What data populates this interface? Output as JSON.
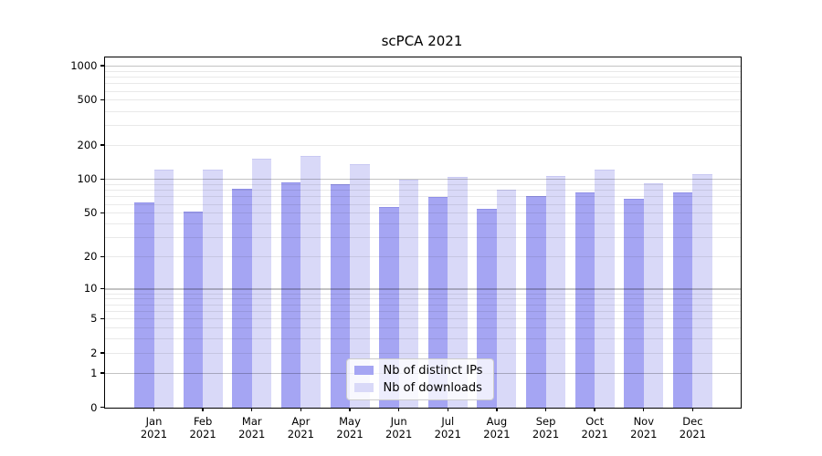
{
  "title": "scPCA 2021",
  "chart_data": {
    "type": "bar",
    "title": "scPCA 2021",
    "categories": [
      "Jan 2021",
      "Feb 2021",
      "Mar 2021",
      "Apr 2021",
      "May 2021",
      "Jun 2021",
      "Jul 2021",
      "Aug 2021",
      "Sep 2021",
      "Oct 2021",
      "Nov 2021",
      "Dec 2021"
    ],
    "series": [
      {
        "name": "Nb of distinct IPs",
        "color": "#a5a5f3",
        "edge_color": "#8f8fe8",
        "values": [
          61,
          50,
          81,
          92,
          88,
          55,
          68,
          53,
          69,
          74,
          66,
          74
        ]
      },
      {
        "name": "Nb of downloads",
        "color": "#d9d9f8",
        "edge_color": "#c8c8f2",
        "values": [
          119,
          119,
          149,
          158,
          133,
          97,
          103,
          79,
          105,
          119,
          90,
          109
        ]
      }
    ],
    "yscale": "log(x+1)",
    "yticks": [
      0,
      1,
      2,
      5,
      10,
      20,
      50,
      100,
      200,
      500,
      1000
    ],
    "ylim": [
      0,
      1190
    ],
    "grid": "horizontal",
    "legend_position": "lower-center-inside"
  },
  "axes": {
    "x_months": [
      "Jan",
      "Feb",
      "Mar",
      "Apr",
      "May",
      "Jun",
      "Jul",
      "Aug",
      "Sep",
      "Oct",
      "Nov",
      "Dec"
    ],
    "x_year": "2021",
    "y_tick_labels": [
      "0",
      "1",
      "2",
      "5",
      "10",
      "20",
      "50",
      "100",
      "200",
      "500",
      "1000"
    ]
  },
  "legend": {
    "items": [
      {
        "label": "Nb of distinct IPs"
      },
      {
        "label": "Nb of downloads"
      }
    ]
  },
  "colors": {
    "background": "#ffffff",
    "spine": "#000000",
    "grid_major": "#c3c3c3",
    "grid_minor": "#e9e9e9",
    "text": "#000000",
    "legend_border": "#cbcbcb"
  }
}
